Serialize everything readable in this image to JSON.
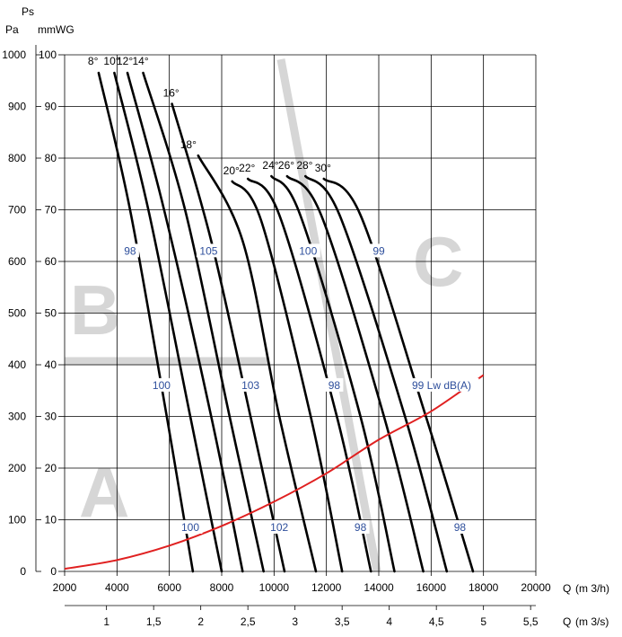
{
  "chart_data": {
    "type": "line",
    "axes": {
      "y_left_units_top": "Ps",
      "y_left_units": "Pa",
      "y_right_units": "mmWG",
      "x_label": "Q",
      "x_units": "(m 3/h)",
      "x2_label": "Q",
      "x2_units": "(m 3/s)",
      "xlim": [
        2000,
        20000
      ],
      "ylim": [
        0,
        1000
      ],
      "x_ticks": [
        "2000",
        "4000",
        "6000",
        "8000",
        "10000",
        "12000",
        "14000",
        "16000",
        "18000",
        "20000"
      ],
      "y_ticks": [
        "0",
        "100",
        "200",
        "300",
        "400",
        "500",
        "600",
        "700",
        "800",
        "900",
        "1000"
      ],
      "y2_ticks": [
        "0",
        "10",
        "20",
        "30",
        "40",
        "50",
        "60",
        "70",
        "80",
        "90",
        "100"
      ],
      "x2_ticks": [
        "1",
        "1,5",
        "2",
        "2,5",
        "3",
        "3,5",
        "4",
        "4,5",
        "5",
        "5,5"
      ],
      "grid": true
    },
    "zones": [
      "A",
      "B",
      "C"
    ],
    "series": [
      {
        "name": "8°",
        "x": [
          3300,
          4500,
          5900,
          6900
        ],
        "y": [
          965,
          700,
          300,
          0
        ]
      },
      {
        "name": "10°",
        "x": [
          3900,
          5200,
          6800,
          8000
        ],
        "y": [
          965,
          700,
          300,
          0
        ]
      },
      {
        "name": "12°",
        "x": [
          4400,
          5800,
          7600,
          8800
        ],
        "y": [
          965,
          700,
          300,
          0
        ]
      },
      {
        "name": "14°",
        "x": [
          5000,
          6600,
          8300,
          9600
        ],
        "y": [
          965,
          700,
          300,
          0
        ]
      },
      {
        "name": "16°",
        "x": [
          6100,
          7600,
          9100,
          10400
        ],
        "y": [
          905,
          640,
          300,
          0
        ]
      },
      {
        "name": "18°",
        "x": [
          7100,
          8800,
          10200,
          11600
        ],
        "y": [
          805,
          640,
          300,
          0
        ]
      },
      {
        "name": "20°",
        "x": [
          8400,
          9500,
          11400,
          12600
        ],
        "y": [
          755,
          680,
          300,
          0
        ]
      },
      {
        "name": "22°",
        "x": [
          9000,
          10200,
          12400,
          13700
        ],
        "y": [
          760,
          690,
          300,
          0
        ]
      },
      {
        "name": "24°",
        "x": [
          9900,
          11000,
          13300,
          14600
        ],
        "y": [
          765,
          690,
          300,
          0
        ]
      },
      {
        "name": "26°",
        "x": [
          10500,
          11800,
          14200,
          15700
        ],
        "y": [
          765,
          690,
          300,
          0
        ]
      },
      {
        "name": "28°",
        "x": [
          11200,
          12500,
          15000,
          16600
        ],
        "y": [
          765,
          690,
          300,
          0
        ]
      },
      {
        "name": "30°",
        "x": [
          11900,
          13300,
          15800,
          17600
        ],
        "y": [
          760,
          690,
          300,
          0
        ]
      },
      {
        "name": "",
        "x": [
          2000,
          4000,
          6000,
          8000,
          10000,
          12000,
          14000,
          16000,
          18000
        ],
        "y": [
          5,
          22,
          50,
          88,
          135,
          190,
          255,
          310,
          380
        ]
      }
    ],
    "curve_labels": [
      "8°",
      "10°",
      "12°",
      "14°",
      "16°",
      "18°",
      "20°",
      "22°",
      "24°",
      "26°",
      "28°",
      "30°"
    ],
    "db_labels": [
      {
        "text": "98",
        "x": 4500,
        "y": 615
      },
      {
        "text": "105",
        "x": 7500,
        "y": 615
      },
      {
        "text": "100",
        "x": 11300,
        "y": 615
      },
      {
        "text": "99",
        "x": 14000,
        "y": 615
      },
      {
        "text": "100",
        "x": 5700,
        "y": 355
      },
      {
        "text": "103",
        "x": 9100,
        "y": 355
      },
      {
        "text": "98",
        "x": 12300,
        "y": 355
      },
      {
        "text": "99 Lw dB(A)",
        "x": 16400,
        "y": 355
      },
      {
        "text": "100",
        "x": 6800,
        "y": 80
      },
      {
        "text": "102",
        "x": 10200,
        "y": 80
      },
      {
        "text": "98",
        "x": 13300,
        "y": 80
      },
      {
        "text": "98",
        "x": 17100,
        "y": 80
      }
    ],
    "colors": {
      "system_curve": "#e02020",
      "db_label": "#2e4f9c",
      "zone_watermark": "#d6d6d6"
    }
  }
}
